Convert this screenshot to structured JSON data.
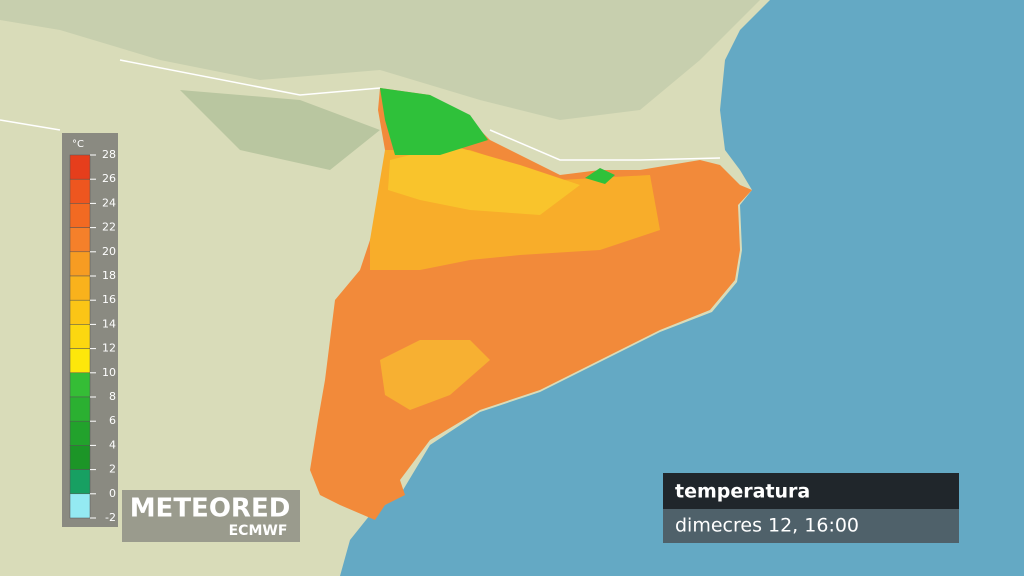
{
  "legend": {
    "unit": "°C",
    "ticks": [
      28,
      26,
      24,
      22,
      20,
      18,
      16,
      14,
      12,
      10,
      8,
      6,
      4,
      2,
      0,
      -2
    ],
    "colors": [
      "#e63e1c",
      "#ee561f",
      "#f26a22",
      "#f5802a",
      "#f79c22",
      "#f9b21c",
      "#fbc516",
      "#fcd710",
      "#fde70b",
      "#35bd36",
      "#2bb031",
      "#22a22c",
      "#1c9527",
      "#17a062",
      "#94eaf2"
    ]
  },
  "logo": {
    "brand": "METEORED",
    "source": "ECMWF"
  },
  "info": {
    "title": "temperatura",
    "time": "dimecres 12, 16:00"
  }
}
